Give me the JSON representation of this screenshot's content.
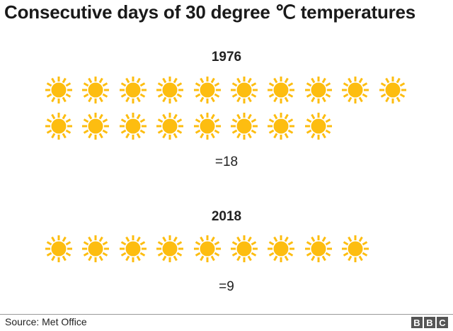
{
  "title": "Consecutive days of 30 degree ℃ temperatures",
  "groups": [
    {
      "year": "1976",
      "count_label": "=18",
      "count": 18
    },
    {
      "year": "2018",
      "count_label": "=9",
      "count": 9
    }
  ],
  "icon": "sun-icon",
  "icon_color": "#FDBD10",
  "footer": {
    "source": "Source: Met Office",
    "logo": [
      "B",
      "B",
      "C"
    ]
  },
  "chart_data": {
    "type": "pictogram",
    "title": "Consecutive days of 30 degree ℃ temperatures",
    "categories": [
      "1976",
      "2018"
    ],
    "values": [
      18,
      9
    ],
    "unit": "days",
    "icon": "sun",
    "source": "Met Office"
  }
}
